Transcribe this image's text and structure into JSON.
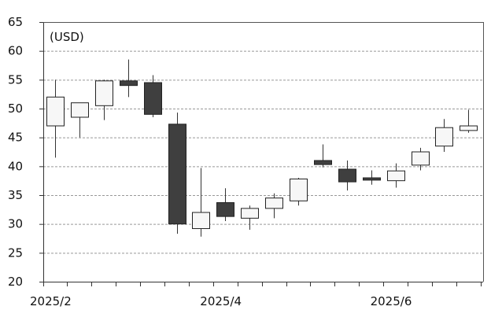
{
  "chart_data": {
    "type": "candlestick",
    "unit_label": "(USD)",
    "ylim": [
      20,
      65
    ],
    "y_ticks": [
      20,
      25,
      30,
      35,
      40,
      45,
      50,
      55,
      60,
      65
    ],
    "x_tick_labels": [
      "2025/2",
      "2025/4",
      "2025/6"
    ],
    "x_tick_label_positions": [
      0,
      7,
      14
    ],
    "grid": "horizontal dashed",
    "legend": "none",
    "colors": {
      "up": "#f7f7f7",
      "down": "#3f3f3f",
      "wick": "#333333",
      "grid": "#999999"
    },
    "candles": [
      {
        "open": 47.0,
        "high": 55.0,
        "low": 41.5,
        "close": 52.0
      },
      {
        "open": 48.5,
        "high": 51.0,
        "low": 45.0,
        "close": 51.0
      },
      {
        "open": 50.5,
        "high": 55.0,
        "low": 48.0,
        "close": 54.8
      },
      {
        "open": 54.8,
        "high": 58.5,
        "low": 52.0,
        "close": 54.0
      },
      {
        "open": 54.5,
        "high": 55.8,
        "low": 48.5,
        "close": 49.0
      },
      {
        "open": 47.3,
        "high": 49.3,
        "low": 28.3,
        "close": 30.0
      },
      {
        "open": 29.2,
        "high": 39.7,
        "low": 27.8,
        "close": 32.0
      },
      {
        "open": 33.7,
        "high": 36.2,
        "low": 30.5,
        "close": 31.3
      },
      {
        "open": 31.0,
        "high": 33.2,
        "low": 29.0,
        "close": 32.7
      },
      {
        "open": 32.7,
        "high": 35.3,
        "low": 31.0,
        "close": 34.5
      },
      {
        "open": 34.0,
        "high": 38.0,
        "low": 33.2,
        "close": 37.8
      },
      {
        "open": 41.0,
        "high": 43.8,
        "low": 39.8,
        "close": 40.3
      },
      {
        "open": 39.5,
        "high": 41.0,
        "low": 35.8,
        "close": 37.3
      },
      {
        "open": 38.0,
        "high": 39.3,
        "low": 36.8,
        "close": 37.6
      },
      {
        "open": 37.5,
        "high": 40.5,
        "low": 36.3,
        "close": 39.2
      },
      {
        "open": 40.2,
        "high": 43.2,
        "low": 39.3,
        "close": 42.5
      },
      {
        "open": 43.5,
        "high": 48.2,
        "low": 42.5,
        "close": 46.7
      },
      {
        "open": 46.2,
        "high": 49.8,
        "low": 45.8,
        "close": 47.0
      }
    ]
  }
}
